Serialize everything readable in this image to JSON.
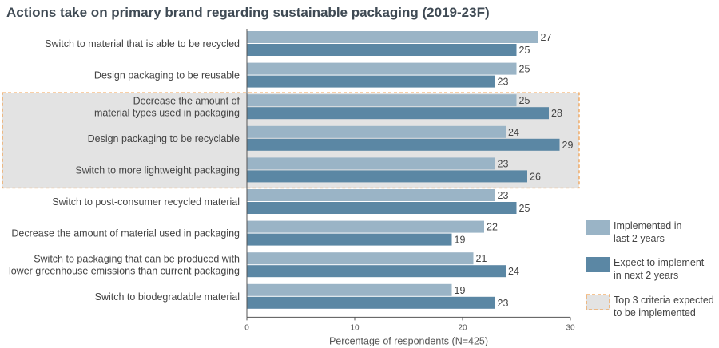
{
  "chart_data": {
    "type": "bar",
    "orientation": "horizontal",
    "title": "Actions take on primary brand regarding sustainable packaging (2019-23F)",
    "xlabel": "Percentage of respondents (N=425)",
    "ylabel": "",
    "xlim": [
      0,
      30
    ],
    "xticks": [
      0,
      10,
      20,
      30
    ],
    "grid": false,
    "legend_placement": "right",
    "categories": [
      [
        "Switch to material that is able to be recycled"
      ],
      [
        "Design packaging to be reusable"
      ],
      [
        "Decrease the amount of",
        "material types used in packaging"
      ],
      [
        "Design packaging to be recyclable"
      ],
      [
        "Switch to more lightweight packaging"
      ],
      [
        "Switch to post-consumer recycled material"
      ],
      [
        "Decrease the amount of material used in packaging"
      ],
      [
        "Switch to packaging that can be produced with",
        "lower greenhouse emissions than current packaging"
      ],
      [
        "Switch to biodegradable material"
      ]
    ],
    "series": [
      {
        "name": "Implemented in last 2 years",
        "legend_lines": [
          "Implemented in",
          "last 2 years"
        ],
        "color": "#9ab4c6",
        "values": [
          27,
          25,
          25,
          24,
          23,
          23,
          22,
          21,
          19
        ]
      },
      {
        "name": "Expect to implement in next 2 years",
        "legend_lines": [
          "Expect to implement",
          "in next 2 years"
        ],
        "color": "#5b87a4",
        "values": [
          25,
          23,
          28,
          29,
          26,
          25,
          19,
          24,
          23
        ]
      }
    ],
    "highlight": {
      "name": "Top 3 criteria expected to be implemented",
      "legend_lines": [
        "Top 3 criteria expected",
        "to be implemented"
      ],
      "category_indices": [
        2,
        3,
        4
      ],
      "fill": "#e3e3e3",
      "border": "#f0a050"
    }
  }
}
